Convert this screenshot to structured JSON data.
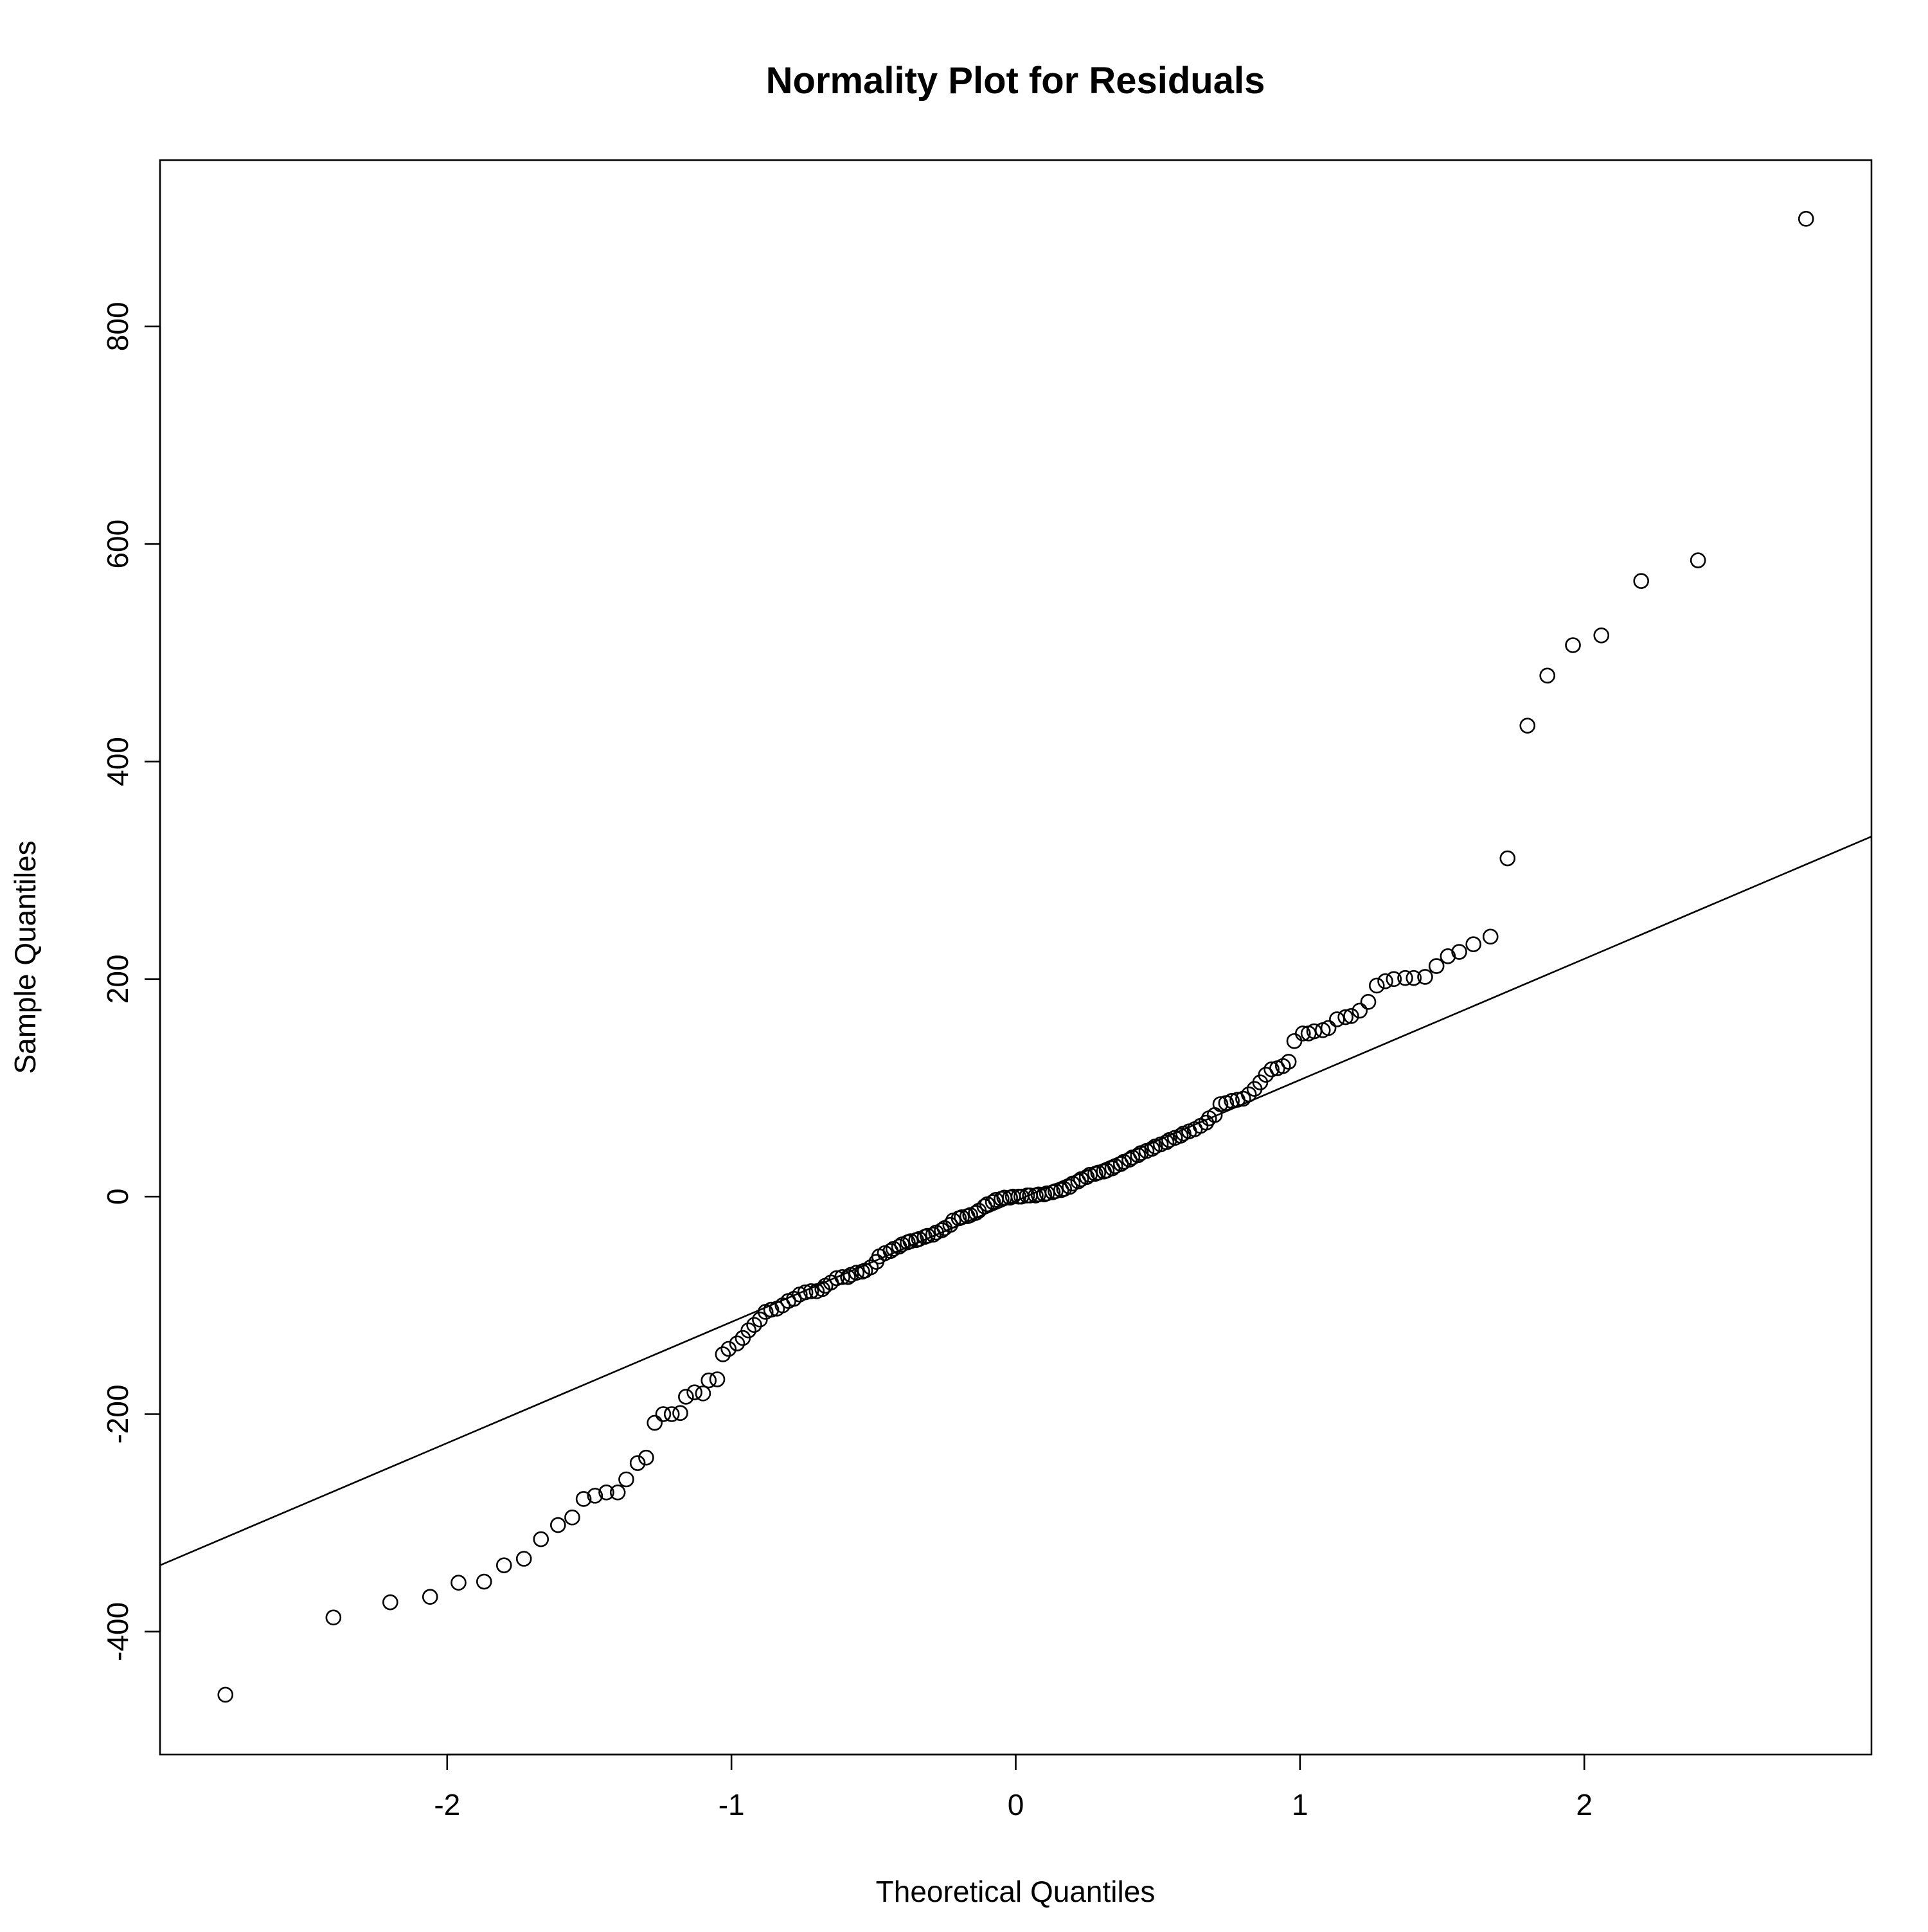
{
  "chart_data": {
    "type": "scatter",
    "title": "Normality Plot for Residuals",
    "xlabel": "Theoretical Quantiles",
    "ylabel": "Sample Quantiles",
    "xlim": [
      -3.01,
      3.01
    ],
    "ylim": [
      -513,
      953
    ],
    "x_ticks": [
      -2,
      -1,
      0,
      1,
      2
    ],
    "x_tick_labels": [
      "-2",
      "-1",
      "0",
      "1",
      "2"
    ],
    "y_ticks": [
      -400,
      -200,
      0,
      200,
      400,
      600,
      800
    ],
    "y_tick_labels": [
      "-400",
      "-200",
      "0",
      "200",
      "400",
      "600",
      "800"
    ],
    "grid": false,
    "legend": "none",
    "reference_line": {
      "x": [
        -3.01,
        3.01
      ],
      "y": [
        -339,
        331
      ]
    },
    "series": [
      {
        "points": [
          [
            -2.78,
            -458
          ],
          [
            -2.4,
            -387
          ],
          [
            -2.2,
            -373
          ],
          [
            -2.06,
            -368
          ],
          [
            -1.96,
            -355
          ],
          [
            -1.87,
            -354
          ],
          [
            -1.8,
            -339
          ],
          [
            -1.73,
            -333
          ],
          [
            -1.67,
            -315
          ],
          [
            -1.61,
            -302
          ],
          [
            -1.56,
            -295
          ],
          [
            -1.52,
            -278
          ],
          [
            -1.48,
            -275
          ],
          [
            -1.44,
            -272
          ],
          [
            -1.4,
            -272
          ],
          [
            -1.37,
            -260
          ],
          [
            -1.33,
            -245
          ],
          [
            -1.3,
            -240
          ],
          [
            -1.27,
            -208
          ],
          [
            -1.24,
            -200
          ],
          [
            -1.21,
            -200
          ],
          [
            -1.18,
            -199
          ],
          [
            -1.16,
            -184
          ],
          [
            -1.13,
            -180
          ],
          [
            -1.1,
            -181
          ],
          [
            -1.08,
            -169
          ],
          [
            -1.05,
            -168
          ],
          [
            -1.03,
            -145
          ],
          [
            -1.01,
            -140
          ],
          [
            -0.98,
            -135
          ],
          [
            -0.96,
            -130
          ],
          [
            -0.94,
            -123
          ],
          [
            -0.92,
            -118
          ],
          [
            -0.9,
            -113
          ],
          [
            -0.88,
            -106
          ],
          [
            -0.86,
            -104
          ],
          [
            -0.84,
            -103
          ],
          [
            -0.82,
            -100
          ],
          [
            -0.8,
            -96
          ],
          [
            -0.78,
            -94
          ],
          [
            -0.76,
            -90
          ],
          [
            -0.74,
            -88
          ],
          [
            -0.72,
            -87
          ],
          [
            -0.7,
            -87
          ],
          [
            -0.68,
            -85
          ],
          [
            -0.67,
            -82
          ],
          [
            -0.65,
            -79
          ],
          [
            -0.63,
            -75
          ],
          [
            -0.61,
            -74
          ],
          [
            -0.59,
            -74
          ],
          [
            -0.58,
            -72
          ],
          [
            -0.56,
            -70
          ],
          [
            -0.54,
            -69
          ],
          [
            -0.53,
            -68
          ],
          [
            -0.51,
            -65
          ],
          [
            -0.49,
            -60
          ],
          [
            -0.48,
            -55
          ],
          [
            -0.46,
            -52
          ],
          [
            -0.44,
            -50
          ],
          [
            -0.43,
            -48
          ],
          [
            -0.41,
            -46
          ],
          [
            -0.4,
            -44
          ],
          [
            -0.38,
            -42
          ],
          [
            -0.37,
            -41
          ],
          [
            -0.35,
            -40
          ],
          [
            -0.34,
            -39
          ],
          [
            -0.32,
            -37
          ],
          [
            -0.31,
            -36
          ],
          [
            -0.29,
            -35
          ],
          [
            -0.28,
            -33
          ],
          [
            -0.26,
            -31
          ],
          [
            -0.25,
            -29
          ],
          [
            -0.23,
            -26
          ],
          [
            -0.22,
            -22
          ],
          [
            -0.2,
            -20
          ],
          [
            -0.19,
            -19
          ],
          [
            -0.17,
            -18
          ],
          [
            -0.16,
            -17
          ],
          [
            -0.14,
            -15
          ],
          [
            -0.13,
            -13
          ],
          [
            -0.11,
            -9
          ],
          [
            -0.1,
            -7
          ],
          [
            -0.08,
            -5
          ],
          [
            -0.07,
            -3
          ],
          [
            -0.05,
            -2
          ],
          [
            -0.04,
            -1
          ],
          [
            -0.02,
            -1
          ],
          [
            -0.01,
            0
          ],
          [
            0.01,
            0
          ],
          [
            0.02,
            0
          ],
          [
            0.04,
            1
          ],
          [
            0.05,
            1
          ],
          [
            0.07,
            1
          ],
          [
            0.08,
            2
          ],
          [
            0.1,
            2
          ],
          [
            0.11,
            3
          ],
          [
            0.13,
            4
          ],
          [
            0.14,
            5
          ],
          [
            0.16,
            6
          ],
          [
            0.17,
            7
          ],
          [
            0.19,
            9
          ],
          [
            0.2,
            12
          ],
          [
            0.22,
            14
          ],
          [
            0.23,
            16
          ],
          [
            0.25,
            18
          ],
          [
            0.26,
            20
          ],
          [
            0.28,
            21
          ],
          [
            0.29,
            22
          ],
          [
            0.31,
            23
          ],
          [
            0.32,
            24
          ],
          [
            0.34,
            26
          ],
          [
            0.35,
            28
          ],
          [
            0.37,
            30
          ],
          [
            0.38,
            32
          ],
          [
            0.4,
            34
          ],
          [
            0.41,
            36
          ],
          [
            0.43,
            38
          ],
          [
            0.44,
            40
          ],
          [
            0.46,
            42
          ],
          [
            0.48,
            44
          ],
          [
            0.49,
            46
          ],
          [
            0.51,
            48
          ],
          [
            0.53,
            50
          ],
          [
            0.54,
            52
          ],
          [
            0.56,
            54
          ],
          [
            0.58,
            56
          ],
          [
            0.59,
            58
          ],
          [
            0.61,
            60
          ],
          [
            0.63,
            62
          ],
          [
            0.65,
            65
          ],
          [
            0.67,
            68
          ],
          [
            0.68,
            72
          ],
          [
            0.7,
            75
          ],
          [
            0.72,
            85
          ],
          [
            0.74,
            86
          ],
          [
            0.76,
            88
          ],
          [
            0.78,
            89
          ],
          [
            0.8,
            90
          ],
          [
            0.82,
            94
          ],
          [
            0.84,
            99
          ],
          [
            0.86,
            105
          ],
          [
            0.88,
            112
          ],
          [
            0.9,
            117
          ],
          [
            0.92,
            118
          ],
          [
            0.94,
            120
          ],
          [
            0.96,
            124
          ],
          [
            0.98,
            143
          ],
          [
            1.01,
            150
          ],
          [
            1.03,
            150
          ],
          [
            1.05,
            152
          ],
          [
            1.08,
            153
          ],
          [
            1.1,
            155
          ],
          [
            1.13,
            163
          ],
          [
            1.16,
            165
          ],
          [
            1.18,
            166
          ],
          [
            1.21,
            171
          ],
          [
            1.24,
            179
          ],
          [
            1.27,
            194
          ],
          [
            1.3,
            198
          ],
          [
            1.33,
            200
          ],
          [
            1.37,
            201
          ],
          [
            1.4,
            201
          ],
          [
            1.44,
            202
          ],
          [
            1.48,
            212
          ],
          [
            1.52,
            221
          ],
          [
            1.56,
            225
          ],
          [
            1.61,
            232
          ],
          [
            1.67,
            239
          ],
          [
            1.73,
            311
          ],
          [
            1.8,
            433
          ],
          [
            1.87,
            479
          ],
          [
            1.96,
            507
          ],
          [
            2.06,
            516
          ],
          [
            2.2,
            566
          ],
          [
            2.4,
            585
          ],
          [
            2.78,
            899
          ]
        ]
      }
    ]
  }
}
